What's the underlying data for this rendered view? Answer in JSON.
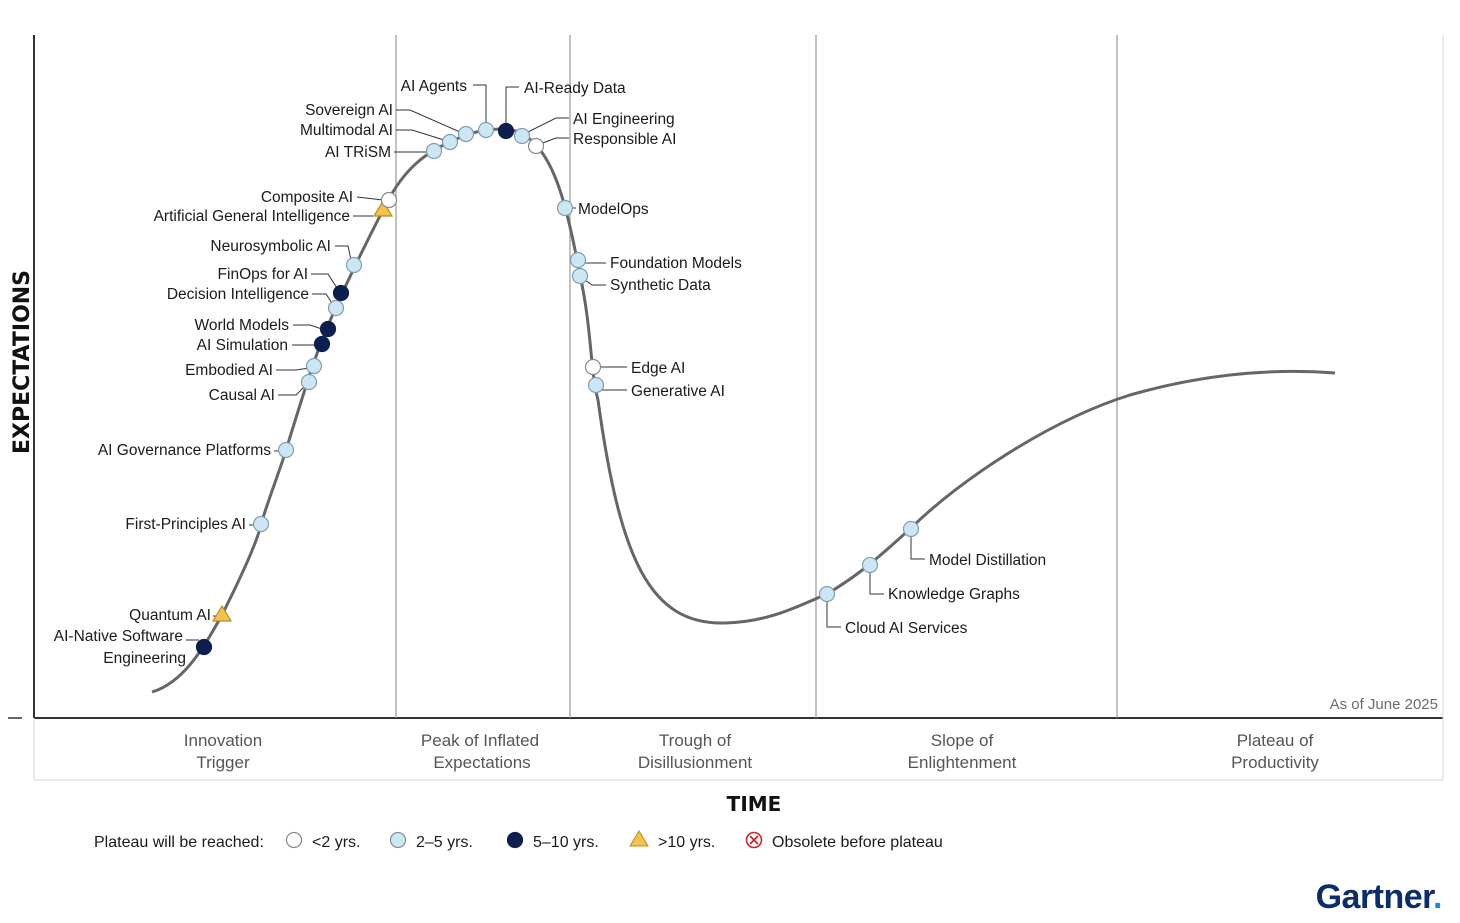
{
  "chart_data": {
    "type": "hype_cycle",
    "ylabel": "EXPECTATIONS",
    "xlabel": "TIME",
    "as_of": "As of June 2025",
    "brand": "Gartner",
    "brand_dot": ".",
    "phases": [
      {
        "line1": "Innovation",
        "line2": "Trigger"
      },
      {
        "line1": "Peak of Inflated",
        "line2": "Expectations"
      },
      {
        "line1": "Trough of",
        "line2": "Disillusionment"
      },
      {
        "line1": "Slope of",
        "line2": "Enlightenment"
      },
      {
        "line1": "Plateau of",
        "line2": "Productivity"
      }
    ],
    "legend": {
      "title": "Plateau will be reached:",
      "items": [
        {
          "key": "lt2",
          "label": "<2 yrs."
        },
        {
          "key": "2to5",
          "label": "2–5 yrs."
        },
        {
          "key": "5to10",
          "label": "5–10 yrs."
        },
        {
          "key": "gt10",
          "label": ">10 yrs."
        },
        {
          "key": "obsolete",
          "label": "Obsolete before plateau"
        }
      ]
    },
    "category_colors": {
      "lt2": "#ffffff",
      "2to5": "#cde6f4",
      "5to10": "#0d1f4e",
      "gt10": "#f2c14e",
      "obsolete": "#c62828"
    },
    "technologies": [
      {
        "name": "AI-Native Software Engineering",
        "category": "5to10"
      },
      {
        "name": "Quantum AI",
        "category": "gt10"
      },
      {
        "name": "First-Principles AI",
        "category": "2to5"
      },
      {
        "name": "AI Governance Platforms",
        "category": "2to5"
      },
      {
        "name": "Causal AI",
        "category": "2to5"
      },
      {
        "name": "Embodied AI",
        "category": "2to5"
      },
      {
        "name": "AI Simulation",
        "category": "5to10"
      },
      {
        "name": "World Models",
        "category": "5to10"
      },
      {
        "name": "Decision Intelligence",
        "category": "2to5"
      },
      {
        "name": "FinOps for AI",
        "category": "5to10"
      },
      {
        "name": "Neurosymbolic AI",
        "category": "2to5"
      },
      {
        "name": "Artificial General Intelligence",
        "category": "gt10"
      },
      {
        "name": "Composite AI",
        "category": "lt2"
      },
      {
        "name": "AI TRiSM",
        "category": "2to5"
      },
      {
        "name": "Multimodal AI",
        "category": "2to5"
      },
      {
        "name": "Sovereign AI",
        "category": "2to5"
      },
      {
        "name": "AI Agents",
        "category": "2to5"
      },
      {
        "name": "AI-Ready Data",
        "category": "5to10"
      },
      {
        "name": "AI Engineering",
        "category": "2to5"
      },
      {
        "name": "Responsible AI",
        "category": "lt2"
      },
      {
        "name": "ModelOps",
        "category": "2to5"
      },
      {
        "name": "Foundation Models",
        "category": "2to5"
      },
      {
        "name": "Synthetic Data",
        "category": "2to5"
      },
      {
        "name": "Edge AI",
        "category": "lt2"
      },
      {
        "name": "Generative AI",
        "category": "2to5"
      },
      {
        "name": "Cloud AI Services",
        "category": "2to5"
      },
      {
        "name": "Knowledge Graphs",
        "category": "2to5"
      },
      {
        "name": "Model Distillation",
        "category": "2to5"
      }
    ]
  }
}
